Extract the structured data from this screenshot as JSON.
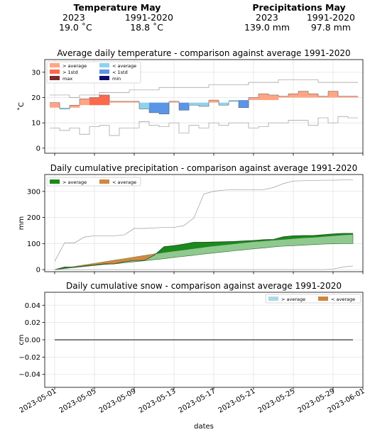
{
  "summary": {
    "temperature": {
      "title": "Temperature May",
      "col1": "2023",
      "col2": "1991-2020",
      "val1": "19.0 ˚C",
      "val2": "18.8 ˚C"
    },
    "precipitation": {
      "title": "Precipitations May",
      "col1": "2023",
      "col2": "1991-2020",
      "val1": "139.0 mm",
      "val2": "97.8 mm"
    }
  },
  "colors": {
    "above_avg_temp": "#ffa584",
    "above_1std_temp": "#fb6a4a",
    "max_temp": "#7f2a2a",
    "below_avg_temp": "#8dd3ec",
    "below_1std_temp": "#5b95e6",
    "min_temp": "#0c0c6e",
    "precip_above": "#1a8a1a",
    "precip_below": "#d08840",
    "snow_above": "#add8e6",
    "snow_below": "#cd853f"
  },
  "chart_data": [
    {
      "type": "line",
      "title": "Average daily temperature - comparison against average 1991-2020",
      "ylabel": "˚C",
      "ylim": [
        -2,
        35
      ],
      "yticks": [
        0,
        10,
        20,
        30
      ],
      "legend": [
        "> average",
        "> 1std",
        "max",
        "< average",
        "< 1std",
        "min"
      ],
      "legend_position": "upper-left",
      "grid": true,
      "series": [
        {
          "name": "max",
          "values": [
            21,
            21,
            20,
            21,
            21,
            22,
            22,
            22,
            23,
            23,
            23,
            24,
            24,
            24,
            24,
            24,
            25,
            25,
            25,
            25,
            26,
            26,
            26,
            27,
            27,
            27,
            27,
            26,
            26,
            26,
            26
          ]
        },
        {
          "name": "min",
          "values": [
            8,
            7,
            8,
            5.5,
            8.5,
            9,
            5,
            8,
            8,
            10.5,
            9,
            8.5,
            10,
            6,
            9,
            8,
            10,
            9,
            10,
            10,
            8,
            8.5,
            10,
            10,
            11,
            11,
            9,
            12,
            10,
            12.5,
            12
          ]
        },
        {
          "values": [
            16,
            16,
            16,
            17,
            17,
            17,
            18,
            18,
            18,
            18,
            18,
            18,
            18,
            18,
            18,
            18,
            18,
            18,
            19,
            19,
            19,
            19,
            19,
            20,
            20,
            20,
            20,
            20,
            20,
            20,
            20
          ]
        },
        {
          "values": [
            18,
            15.5,
            17,
            19.5,
            20,
            21,
            18.5,
            18.5,
            18.5,
            15.5,
            14,
            13.5,
            18.5,
            15,
            17,
            16.5,
            19,
            17,
            18.5,
            16,
            20,
            21.5,
            21,
            20.5,
            21.5,
            22.5,
            21.5,
            20.5,
            22.5,
            20.5,
            20.5
          ]
        }
      ]
    },
    {
      "type": "area",
      "title": "Daily cumulative precipitation - comparison against average 1991-2020",
      "ylabel": "mm",
      "ylim": [
        -8,
        365
      ],
      "yticks": [
        0,
        100,
        200,
        300
      ],
      "legend": [
        "> average",
        "< average"
      ],
      "legend_position": "upper-left",
      "grid": true,
      "series": [
        {
          "values": [
            0,
            10,
            10,
            14,
            18,
            22,
            22,
            30,
            35,
            35,
            55,
            88,
            92,
            98,
            105,
            105,
            106,
            107,
            108,
            110,
            112,
            115,
            116,
            126,
            130,
            131,
            131,
            134,
            137,
            139,
            139
          ]
        },
        {
          "values": [
            0,
            4,
            8,
            12,
            16,
            20,
            22,
            26,
            30,
            34,
            38,
            42,
            47,
            51,
            55,
            60,
            64,
            68,
            72,
            76,
            80,
            83,
            87,
            90,
            92,
            94,
            96,
            98,
            99,
            100,
            100
          ]
        },
        {
          "values": [
            0,
            6,
            12,
            18,
            24,
            30,
            36,
            42,
            48,
            54,
            60,
            66,
            71,
            76,
            81,
            86,
            91,
            95,
            99,
            103,
            107,
            110,
            113,
            116,
            119,
            122,
            124,
            127,
            130,
            133,
            135
          ]
        },
        {
          "values": [
            32,
            103,
            103,
            125,
            130,
            130,
            130,
            133,
            158,
            158,
            160,
            162,
            162,
            169,
            198,
            290,
            301,
            305,
            307,
            307,
            307,
            307,
            315,
            330,
            340,
            341,
            342,
            343,
            343,
            344,
            344
          ]
        },
        {
          "values": [
            0,
            0,
            0,
            0,
            0,
            0,
            0,
            0,
            0,
            0,
            0,
            0,
            0,
            0,
            0,
            0,
            0,
            0,
            0,
            0,
            0,
            0,
            0,
            0,
            0,
            0,
            0,
            0,
            2,
            10,
            14
          ]
        }
      ]
    },
    {
      "type": "line",
      "title": "Daily cumulative snow - comparison against average 1991-2020",
      "ylabel": "cm",
      "xlabel": "dates",
      "ylim": [
        -0.055,
        0.055
      ],
      "yticks": [
        0.04,
        0.02,
        0.0,
        -0.02,
        -0.04
      ],
      "ytick_labels": [
        "0.04",
        "0.02",
        "0.00",
        "−0.02",
        "−0.04"
      ],
      "legend": [
        "> average",
        "< average"
      ],
      "legend_position": "upper-right",
      "grid": true,
      "x": [
        "2023-05-01",
        "2023-05-31"
      ],
      "values": [
        0,
        0
      ]
    }
  ],
  "xaxis": {
    "start": "2023-05-01",
    "end": "2023-05-31",
    "xlim": [
      "2023-04-30",
      "2023-06-01"
    ],
    "ticks": [
      "2023-05-01",
      "2023-05-05",
      "2023-05-09",
      "2023-05-13",
      "2023-05-17",
      "2023-05-21",
      "2023-05-25",
      "2023-05-29",
      "2023-06-01"
    ]
  }
}
